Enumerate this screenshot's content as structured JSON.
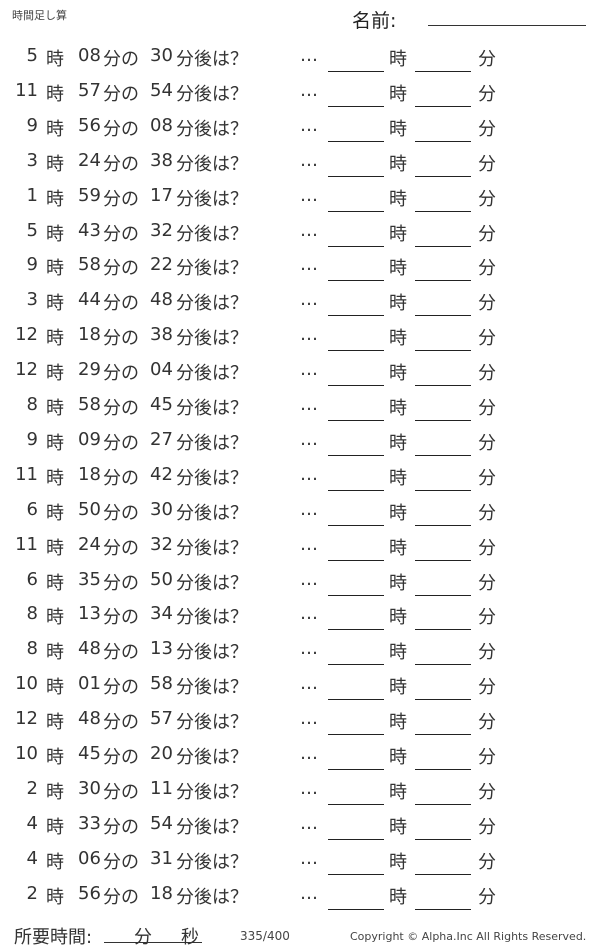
{
  "header": {
    "title": "時間足し算",
    "name_label": "名前:"
  },
  "labels": {
    "hour": "時",
    "minute_of": "分の",
    "after": "分後は？",
    "ellipsis": "…",
    "answer_hour": "時",
    "answer_minute": "分"
  },
  "problems": [
    {
      "h": "5",
      "m": "08",
      "add": "30"
    },
    {
      "h": "11",
      "m": "57",
      "add": "54"
    },
    {
      "h": "9",
      "m": "56",
      "add": "08"
    },
    {
      "h": "3",
      "m": "24",
      "add": "38"
    },
    {
      "h": "1",
      "m": "59",
      "add": "17"
    },
    {
      "h": "5",
      "m": "43",
      "add": "32"
    },
    {
      "h": "9",
      "m": "58",
      "add": "22"
    },
    {
      "h": "3",
      "m": "44",
      "add": "48"
    },
    {
      "h": "12",
      "m": "18",
      "add": "38"
    },
    {
      "h": "12",
      "m": "29",
      "add": "04"
    },
    {
      "h": "8",
      "m": "58",
      "add": "45"
    },
    {
      "h": "9",
      "m": "09",
      "add": "27"
    },
    {
      "h": "11",
      "m": "18",
      "add": "42"
    },
    {
      "h": "6",
      "m": "50",
      "add": "30"
    },
    {
      "h": "11",
      "m": "24",
      "add": "32"
    },
    {
      "h": "6",
      "m": "35",
      "add": "50"
    },
    {
      "h": "8",
      "m": "13",
      "add": "34"
    },
    {
      "h": "8",
      "m": "48",
      "add": "13"
    },
    {
      "h": "10",
      "m": "01",
      "add": "58"
    },
    {
      "h": "12",
      "m": "48",
      "add": "57"
    },
    {
      "h": "10",
      "m": "45",
      "add": "20"
    },
    {
      "h": "2",
      "m": "30",
      "add": "11"
    },
    {
      "h": "4",
      "m": "33",
      "add": "54"
    },
    {
      "h": "4",
      "m": "06",
      "add": "31"
    },
    {
      "h": "2",
      "m": "56",
      "add": "18"
    }
  ],
  "footer": {
    "time_label": "所要時間:",
    "min": "分",
    "sec": "秒",
    "page": "335/400",
    "copyright": "Copyright ©  Alpha.Inc All Rights Reserved."
  }
}
